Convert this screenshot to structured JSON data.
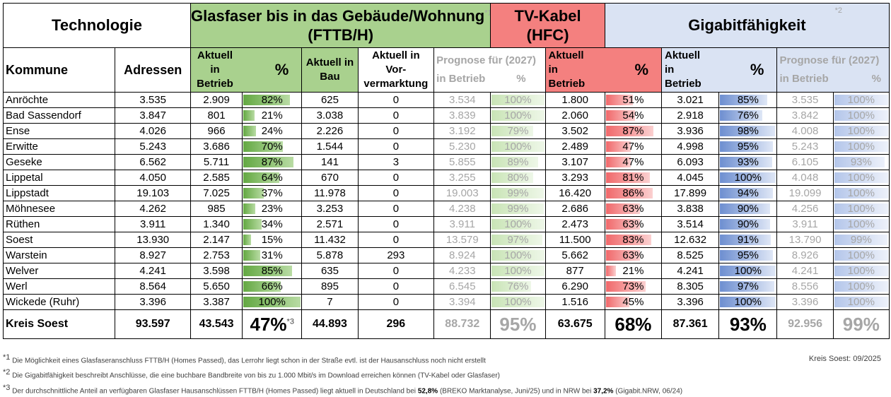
{
  "header": {
    "technologie": "Technologie",
    "glasfaser_title": "Glasfaser bis in das Gebäude/Wohnung",
    "glasfaser_sub": "(FTTB/H)",
    "glasfaser_note": "*1",
    "tv_title": "TV-Kabel",
    "tv_sub": "(HFC)",
    "giga_title": "Gigabitfähigkeit",
    "giga_note": "*2"
  },
  "subheader": {
    "kommune": "Kommune",
    "adressen": "Adressen",
    "aktuell_betrieb": "Aktuell in Betrieb",
    "aktuell_l1": "Aktuell",
    "aktuell_l2": "in",
    "aktuell_l3": "Betrieb",
    "pct": "%",
    "bau_l1": "Aktuell in",
    "bau_l2": "Bau",
    "vorv_l1": "Aktuell in",
    "vorv_l2": "Vor-",
    "vorv_l3": "vermarktung",
    "prognose": "Prognose für (2027)",
    "in_betrieb": "in Betrieb"
  },
  "rows": [
    {
      "kommune": "Anröchte",
      "adressen": "3.535",
      "ftth_betrieb": "2.909",
      "ftth_pct": "82%",
      "bau": "625",
      "vorv": "0",
      "prog_betrieb": "3.534",
      "prog_pct": "100%",
      "hfc_betrieb": "1.800",
      "hfc_pct": "51%",
      "giga_betrieb": "3.021",
      "giga_pct": "85%",
      "giga_prog_betrieb": "3.535",
      "giga_prog_pct": "100%"
    },
    {
      "kommune": "Bad Sassendorf",
      "adressen": "3.847",
      "ftth_betrieb": "801",
      "ftth_pct": "21%",
      "bau": "3.038",
      "vorv": "0",
      "prog_betrieb": "3.839",
      "prog_pct": "100%",
      "hfc_betrieb": "2.060",
      "hfc_pct": "54%",
      "giga_betrieb": "2.918",
      "giga_pct": "76%",
      "giga_prog_betrieb": "3.842",
      "giga_prog_pct": "100%"
    },
    {
      "kommune": "Ense",
      "adressen": "4.026",
      "ftth_betrieb": "966",
      "ftth_pct": "24%",
      "bau": "2.226",
      "vorv": "0",
      "prog_betrieb": "3.192",
      "prog_pct": "79%",
      "hfc_betrieb": "3.502",
      "hfc_pct": "87%",
      "giga_betrieb": "3.936",
      "giga_pct": "98%",
      "giga_prog_betrieb": "4.008",
      "giga_prog_pct": "100%"
    },
    {
      "kommune": "Erwitte",
      "adressen": "5.243",
      "ftth_betrieb": "3.686",
      "ftth_pct": "70%",
      "bau": "1.544",
      "vorv": "0",
      "prog_betrieb": "5.230",
      "prog_pct": "100%",
      "hfc_betrieb": "2.489",
      "hfc_pct": "47%",
      "giga_betrieb": "4.998",
      "giga_pct": "95%",
      "giga_prog_betrieb": "5.243",
      "giga_prog_pct": "100%"
    },
    {
      "kommune": "Geseke",
      "adressen": "6.562",
      "ftth_betrieb": "5.711",
      "ftth_pct": "87%",
      "bau": "141",
      "vorv": "3",
      "prog_betrieb": "5.855",
      "prog_pct": "89%",
      "hfc_betrieb": "3.107",
      "hfc_pct": "47%",
      "giga_betrieb": "6.093",
      "giga_pct": "93%",
      "giga_prog_betrieb": "6.105",
      "giga_prog_pct": "93%"
    },
    {
      "kommune": "Lippetal",
      "adressen": "4.050",
      "ftth_betrieb": "2.585",
      "ftth_pct": "64%",
      "bau": "670",
      "vorv": "0",
      "prog_betrieb": "3.255",
      "prog_pct": "80%",
      "hfc_betrieb": "3.293",
      "hfc_pct": "81%",
      "giga_betrieb": "4.045",
      "giga_pct": "100%",
      "giga_prog_betrieb": "4.048",
      "giga_prog_pct": "100%"
    },
    {
      "kommune": "Lippstadt",
      "adressen": "19.103",
      "ftth_betrieb": "7.025",
      "ftth_pct": "37%",
      "bau": "11.978",
      "vorv": "0",
      "prog_betrieb": "19.003",
      "prog_pct": "99%",
      "hfc_betrieb": "16.420",
      "hfc_pct": "86%",
      "giga_betrieb": "17.899",
      "giga_pct": "94%",
      "giga_prog_betrieb": "19.099",
      "giga_prog_pct": "100%"
    },
    {
      "kommune": "Möhnesee",
      "adressen": "4.262",
      "ftth_betrieb": "985",
      "ftth_pct": "23%",
      "bau": "3.253",
      "vorv": "0",
      "prog_betrieb": "4.238",
      "prog_pct": "99%",
      "hfc_betrieb": "2.686",
      "hfc_pct": "63%",
      "giga_betrieb": "3.838",
      "giga_pct": "90%",
      "giga_prog_betrieb": "4.256",
      "giga_prog_pct": "100%"
    },
    {
      "kommune": "Rüthen",
      "adressen": "3.911",
      "ftth_betrieb": "1.340",
      "ftth_pct": "34%",
      "bau": "2.571",
      "vorv": "0",
      "prog_betrieb": "3.911",
      "prog_pct": "100%",
      "hfc_betrieb": "2.473",
      "hfc_pct": "63%",
      "giga_betrieb": "3.514",
      "giga_pct": "90%",
      "giga_prog_betrieb": "3.911",
      "giga_prog_pct": "100%"
    },
    {
      "kommune": "Soest",
      "adressen": "13.930",
      "ftth_betrieb": "2.147",
      "ftth_pct": "15%",
      "bau": "11.432",
      "vorv": "0",
      "prog_betrieb": "13.579",
      "prog_pct": "97%",
      "hfc_betrieb": "11.500",
      "hfc_pct": "83%",
      "giga_betrieb": "12.632",
      "giga_pct": "91%",
      "giga_prog_betrieb": "13.790",
      "giga_prog_pct": "99%"
    },
    {
      "kommune": "Warstein",
      "adressen": "8.927",
      "ftth_betrieb": "2.753",
      "ftth_pct": "31%",
      "bau": "5.878",
      "vorv": "293",
      "prog_betrieb": "8.924",
      "prog_pct": "100%",
      "hfc_betrieb": "5.662",
      "hfc_pct": "63%",
      "giga_betrieb": "8.525",
      "giga_pct": "95%",
      "giga_prog_betrieb": "8.926",
      "giga_prog_pct": "100%"
    },
    {
      "kommune": "Welver",
      "adressen": "4.241",
      "ftth_betrieb": "3.598",
      "ftth_pct": "85%",
      "bau": "635",
      "vorv": "0",
      "prog_betrieb": "4.233",
      "prog_pct": "100%",
      "hfc_betrieb": "877",
      "hfc_pct": "21%",
      "giga_betrieb": "4.241",
      "giga_pct": "100%",
      "giga_prog_betrieb": "4.241",
      "giga_prog_pct": "100%"
    },
    {
      "kommune": "Werl",
      "adressen": "8.564",
      "ftth_betrieb": "5.650",
      "ftth_pct": "66%",
      "bau": "895",
      "vorv": "0",
      "prog_betrieb": "6.545",
      "prog_pct": "76%",
      "hfc_betrieb": "6.290",
      "hfc_pct": "73%",
      "giga_betrieb": "8.305",
      "giga_pct": "97%",
      "giga_prog_betrieb": "8.556",
      "giga_prog_pct": "100%"
    },
    {
      "kommune": "Wickede (Ruhr)",
      "adressen": "3.396",
      "ftth_betrieb": "3.387",
      "ftth_pct": "100%",
      "bau": "7",
      "vorv": "0",
      "prog_betrieb": "3.394",
      "prog_pct": "100%",
      "hfc_betrieb": "1.516",
      "hfc_pct": "45%",
      "giga_betrieb": "3.396",
      "giga_pct": "100%",
      "giga_prog_betrieb": "3.396",
      "giga_prog_pct": "100%"
    }
  ],
  "total": {
    "kommune": "Kreis Soest",
    "adressen": "93.597",
    "ftth_betrieb": "43.543",
    "ftth_pct": "47%",
    "ftth_note": "*3",
    "bau": "44.893",
    "vorv": "296",
    "prog_betrieb": "88.732",
    "prog_pct": "95%",
    "hfc_betrieb": "63.675",
    "hfc_pct": "68%",
    "giga_betrieb": "87.361",
    "giga_pct": "93%",
    "giga_prog_betrieb": "92.956",
    "giga_prog_pct": "99%"
  },
  "footnotes": {
    "n1_mark": "*1",
    "n1": "Die Möglichkeit eines Glasfaseranschluss FTTB/H (Homes Passed), das Lerrohr liegt schon in der Straße evtl. ist der Hausanschluss noch nicht erstellt",
    "n2_mark": "*2",
    "n2": "Die Gigabitfähigkeit beschreibt Anschlüsse, die eine buchbare Bandbreite von bis zu 1.000 Mbit/s im Download erreichen können (TV-Kabel oder Glasfaser)",
    "n3_mark": "*3",
    "n3_a": "Der durchschnittliche Anteil an verfügbaren Glasfaser Hausanschlüssen FTTB/H (Homes Passed) liegt aktuell in Deutschland bei",
    "n3_de": "52,8%",
    "n3_b": "(BREKO Marktanalyse, Juni/25) und in NRW bei",
    "n3_nrw": "37,2%",
    "n3_c": "(Gigabit.NRW, 06/24)",
    "stand": "Kreis Soest: 09/2025"
  }
}
